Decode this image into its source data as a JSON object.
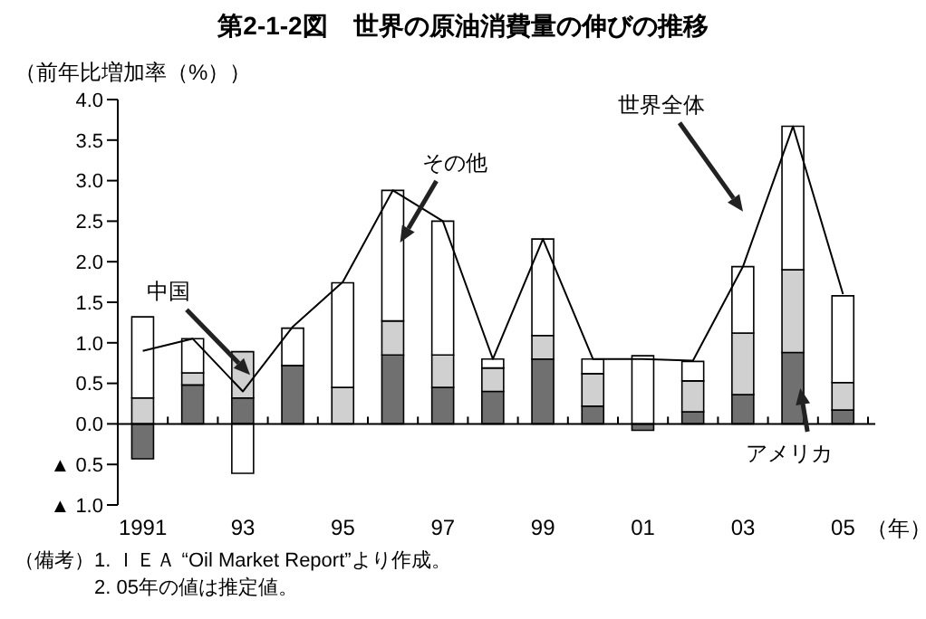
{
  "chart_data": {
    "type": "bar",
    "title": "第2-1-2図　世界の原油消費量の伸びの推移",
    "ylabel": "（前年比増加率（%））",
    "xlabel": "（年）",
    "categories": [
      "1991",
      null,
      "93",
      null,
      "95",
      null,
      "97",
      null,
      "99",
      null,
      "01",
      null,
      "03",
      null,
      "05"
    ],
    "stacked": true,
    "series": [
      {
        "name": "アメリカ",
        "color": "#707070",
        "values": [
          -0.43,
          0.48,
          0.32,
          0.72,
          0,
          0.85,
          0.45,
          0.4,
          0.8,
          0.22,
          -0.08,
          0.15,
          0.36,
          0.88,
          0.17
        ]
      },
      {
        "name": "中国",
        "color": "#d0d0d0",
        "values": [
          0.32,
          0.15,
          0.57,
          0,
          0.45,
          0.42,
          0.4,
          0.29,
          0.29,
          0.4,
          0,
          0.38,
          0.76,
          1.02,
          0.34
        ]
      },
      {
        "name": "その他",
        "color": "#ffffff",
        "values": [
          1.0,
          0.42,
          -0.61,
          0.46,
          1.29,
          1.61,
          1.65,
          0.11,
          1.19,
          0.18,
          0.84,
          0.24,
          0.82,
          1.77,
          1.07
        ]
      },
      {
        "name": "世界全体",
        "type": "line",
        "color": "#000000",
        "values": [
          0.9,
          1.05,
          0.4,
          1.2,
          1.75,
          2.88,
          2.5,
          0.8,
          2.28,
          0.8,
          0.8,
          0.78,
          1.94,
          3.67,
          1.6
        ]
      }
    ],
    "ylim": [
      -1.0,
      4.0
    ],
    "yticks": [
      {
        "value": -1.0,
        "label": "▲ 1.0"
      },
      {
        "value": -0.5,
        "label": "▲ 0.5"
      },
      {
        "value": 0,
        "label": "0.0"
      },
      {
        "value": 0.5,
        "label": "0.5"
      },
      {
        "value": 1.0,
        "label": "1.0"
      },
      {
        "value": 1.5,
        "label": "1.5"
      },
      {
        "value": 2.0,
        "label": "2.0"
      },
      {
        "value": 2.5,
        "label": "2.5"
      },
      {
        "value": 3.0,
        "label": "3.0"
      },
      {
        "value": 3.5,
        "label": "3.5"
      },
      {
        "value": 4.0,
        "label": "4.0"
      }
    ],
    "legend": false,
    "marker": "none",
    "line_style": "solid",
    "annotations": [
      "（備考）1. ＩＥＡ “Oil Market Report”より作成。",
      "2. 05年の値は推定値。"
    ]
  }
}
